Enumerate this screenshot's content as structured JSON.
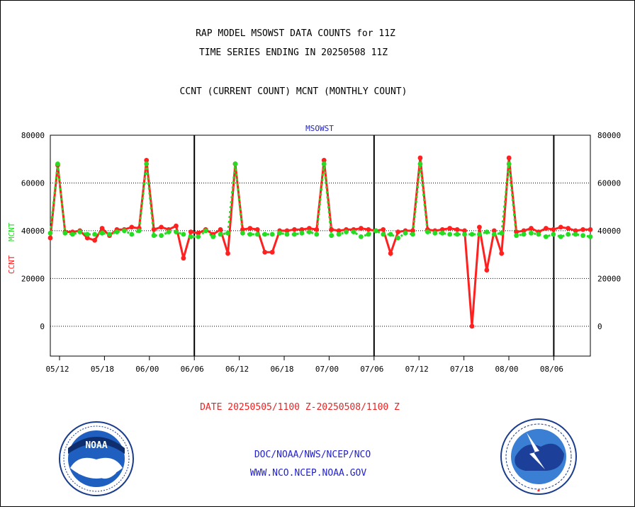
{
  "header": {
    "line1": "RAP MODEL MSOWST DATA COUNTS for 11Z",
    "line2": "TIME SERIES ENDING IN 20250508 11Z",
    "line3": "CCNT (CURRENT COUNT) MCNT (MONTHLY COUNT)"
  },
  "footer": {
    "date_range": "DATE 20250505/1100 Z-20250508/1100 Z",
    "link1": "DOC/NOAA/NWS/NCEP/NCO",
    "link2": "WWW.NCO.NCEP.NOAA.GOV"
  },
  "logos": {
    "noaa_left": "noaa-logo",
    "nws_right": "nws-logo",
    "noaa_text": "NOAA"
  },
  "colors": {
    "ccnt": "#ff2020",
    "mcnt": "#22dd22",
    "title_blue": "#2222cc",
    "date_red": "#ee2222"
  },
  "chart_data": {
    "type": "line",
    "title": "MSOWST",
    "ylabel_red": "CCNT",
    "ylabel_green": "MCNT",
    "x_tick_labels": [
      "05/12",
      "05/18",
      "06/00",
      "06/06",
      "06/12",
      "06/18",
      "07/00",
      "07/06",
      "07/12",
      "07/18",
      "08/00",
      "08/06"
    ],
    "y_ticks": [
      0,
      20000,
      40000,
      60000,
      80000
    ],
    "y_tick_labels": [
      "0",
      "20000",
      "40000",
      "60000",
      "80000"
    ],
    "ylim": [
      -12500,
      80000
    ],
    "x_range_hours": [
      "05/10",
      "08/11"
    ],
    "grid": "horizontal dotted at y ticks; vertical solid at 06/06, 07/06, 08/06",
    "series": [
      {
        "name": "CCNT",
        "color": "#ff2020",
        "values": [
          37000,
          67500,
          39500,
          39500,
          40000,
          37000,
          36000,
          41000,
          38000,
          40500,
          40500,
          41500,
          41000,
          69500,
          40500,
          41500,
          40500,
          42000,
          28500,
          39500,
          39000,
          40500,
          38500,
          40500,
          30500,
          68000,
          40500,
          41000,
          40500,
          31000,
          31000,
          40000,
          40000,
          40500,
          40500,
          41000,
          40500,
          69500,
          40500,
          40000,
          40500,
          40500,
          41000,
          40500,
          40000,
          40500,
          30500,
          39500,
          40000,
          40000,
          70500,
          40500,
          40000,
          40500,
          41000,
          40500,
          40000,
          0,
          41500,
          23500,
          40000,
          30500,
          70500,
          39500,
          40000,
          41000,
          39500,
          41000,
          40500,
          41500,
          41000,
          40000,
          40500,
          40500
        ]
      },
      {
        "name": "MCNT",
        "color": "#22dd22",
        "values": [
          39000,
          68000,
          39000,
          38500,
          39500,
          38500,
          38500,
          39000,
          38500,
          39500,
          40000,
          38500,
          40000,
          68000,
          38000,
          38000,
          39500,
          39500,
          38500,
          37500,
          37500,
          40000,
          37500,
          38500,
          39000,
          68000,
          39000,
          38500,
          38500,
          38500,
          38500,
          39000,
          38500,
          38500,
          39000,
          39500,
          38500,
          68000,
          38000,
          38500,
          39500,
          39500,
          37500,
          38500,
          40000,
          38500,
          38500,
          37000,
          39000,
          38500,
          68000,
          39500,
          39000,
          39000,
          38500,
          38500,
          38500,
          38500,
          38500,
          39500,
          38500,
          39000,
          68000,
          38000,
          38500,
          39000,
          38500,
          37500,
          38500,
          37500,
          38500,
          38500,
          38000,
          37500
        ]
      }
    ]
  }
}
